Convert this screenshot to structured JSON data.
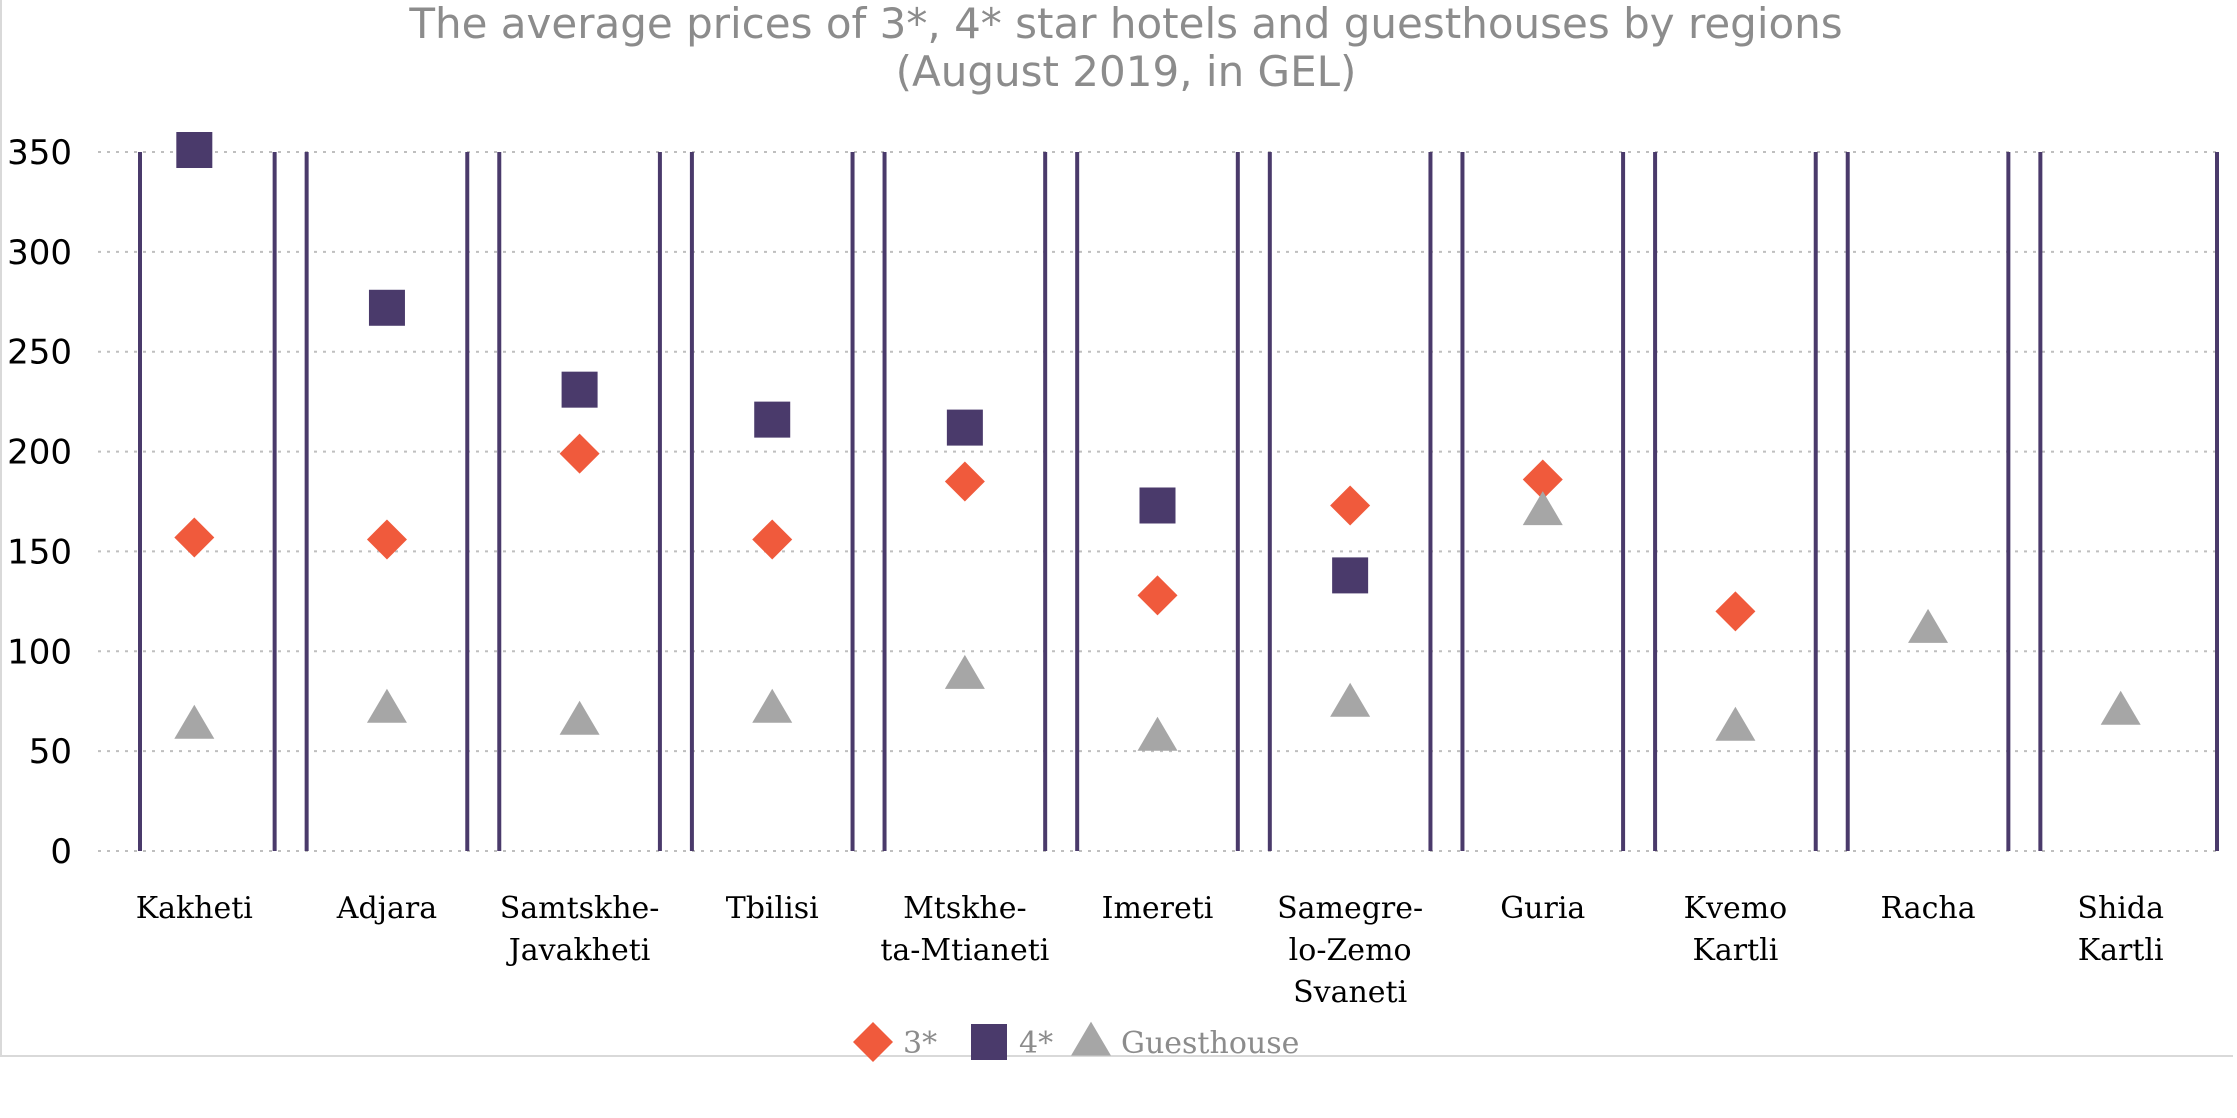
{
  "chart_data": {
    "type": "scatter",
    "title_lines": [
      "The average prices of 3*, 4* star hotels and guesthouses by regions",
      "(August 2019, in GEL)"
    ],
    "categories": [
      [
        "Kakheti"
      ],
      [
        "Adjara"
      ],
      [
        "Samtskhe-",
        "Javakheti"
      ],
      [
        "Tbilisi"
      ],
      [
        "Mtskhe-",
        "ta-Mtianeti"
      ],
      [
        "Imereti"
      ],
      [
        "Samegre-",
        "lo-Zemo",
        "Svaneti"
      ],
      [
        "Guria"
      ],
      [
        "Kvemo",
        "Kartli"
      ],
      [
        "Racha"
      ],
      [
        "Shida",
        "Kartli"
      ]
    ],
    "yticks": [
      0,
      50,
      100,
      150,
      200,
      250,
      300,
      350
    ],
    "ylim": [
      0,
      350
    ],
    "grid": true,
    "legend_position": "bottom",
    "series": [
      {
        "name": "3*",
        "marker": "diamond",
        "color": "#f05a3c",
        "values": [
          157,
          156,
          199,
          156,
          185,
          128,
          173,
          186,
          120,
          null,
          null
        ]
      },
      {
        "name": "4*",
        "marker": "square",
        "color": "#4a3a6b",
        "values": [
          351,
          272,
          231,
          216,
          212,
          173,
          138,
          null,
          null,
          null,
          null
        ]
      },
      {
        "name": "Guesthouse",
        "marker": "triangle",
        "color": "#a6a6a6",
        "values": [
          63,
          71,
          65,
          71,
          88,
          57,
          74,
          170,
          62,
          111,
          70
        ]
      }
    ],
    "divider_color": "#4a3a6b",
    "grid_color": "#bfbfbf"
  }
}
